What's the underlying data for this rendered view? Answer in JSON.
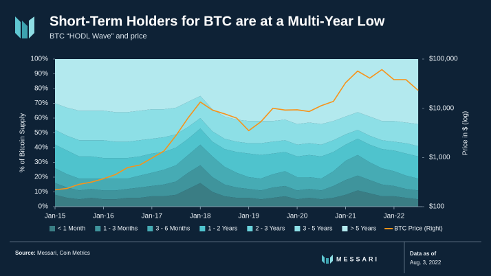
{
  "chart_data": {
    "type": "stacked-area-line",
    "title": "Short-Term Holders for BTC are at a Multi-Year Low",
    "subtitle": "BTC “HODL Wave” and price",
    "y_label": "% of Bitcoin Supply",
    "y2_label": "Price in $ (log)",
    "x": [
      "2015-01",
      "2015-04",
      "2015-07",
      "2015-10",
      "2016-01",
      "2016-04",
      "2016-07",
      "2016-10",
      "2017-01",
      "2017-04",
      "2017-07",
      "2017-10",
      "2018-01",
      "2018-04",
      "2018-07",
      "2018-10",
      "2019-01",
      "2019-04",
      "2019-07",
      "2019-10",
      "2020-01",
      "2020-04",
      "2020-07",
      "2020-10",
      "2021-01",
      "2021-04",
      "2021-07",
      "2021-10",
      "2022-01",
      "2022-04",
      "2022-07"
    ],
    "xlim": [
      "2015-01",
      "2022-08"
    ],
    "xticks": [
      {
        "value": "2015-01",
        "label": "Jan-15"
      },
      {
        "value": "2016-01",
        "label": "Jan-16"
      },
      {
        "value": "2017-01",
        "label": "Jan-17"
      },
      {
        "value": "2018-01",
        "label": "Jan-18"
      },
      {
        "value": "2019-01",
        "label": "Jan-19"
      },
      {
        "value": "2020-01",
        "label": "Jan-20"
      },
      {
        "value": "2021-01",
        "label": "Jan-21"
      },
      {
        "value": "2022-01",
        "label": "Jan-22"
      }
    ],
    "ylim": [
      0,
      100
    ],
    "yticks": [
      {
        "value": 0,
        "label": "0%"
      },
      {
        "value": 10,
        "label": "10%"
      },
      {
        "value": 20,
        "label": "20%"
      },
      {
        "value": 30,
        "label": "30%"
      },
      {
        "value": 40,
        "label": "40%"
      },
      {
        "value": 50,
        "label": "50%"
      },
      {
        "value": 60,
        "label": "60%"
      },
      {
        "value": 70,
        "label": "70%"
      },
      {
        "value": 80,
        "label": "80%"
      },
      {
        "value": 90,
        "label": "90%"
      },
      {
        "value": 100,
        "label": "100%"
      }
    ],
    "y2lim": [
      100,
      100000
    ],
    "y2ticks": [
      {
        "value": 100,
        "label": "$100"
      },
      {
        "value": 1000,
        "label": "$1,000"
      },
      {
        "value": 10000,
        "label": "$10,000"
      },
      {
        "value": 100000,
        "label": "$100,000"
      }
    ],
    "y2_log": true,
    "series": [
      {
        "name": "< 1 Month",
        "color": "#3a7d84",
        "values": [
          8,
          6,
          5,
          6,
          5,
          5,
          6,
          6,
          7,
          7,
          8,
          12,
          16,
          10,
          7,
          6,
          6,
          5,
          6,
          7,
          5,
          6,
          5,
          6,
          8,
          11,
          9,
          7,
          7,
          6,
          5
        ]
      },
      {
        "name": "1 - 3 Months",
        "color": "#3f949c",
        "values": [
          8,
          7,
          6,
          6,
          6,
          6,
          6,
          7,
          7,
          8,
          9,
          11,
          12,
          10,
          8,
          7,
          6,
          6,
          7,
          7,
          6,
          6,
          6,
          8,
          10,
          10,
          9,
          8,
          7,
          6,
          6
        ]
      },
      {
        "name": "3 - 6 Months",
        "color": "#46abb4",
        "values": [
          10,
          9,
          8,
          7,
          8,
          8,
          7,
          8,
          9,
          10,
          11,
          12,
          14,
          14,
          12,
          10,
          8,
          8,
          9,
          10,
          9,
          8,
          8,
          10,
          13,
          14,
          12,
          11,
          10,
          9,
          8
        ]
      },
      {
        "name": "1 - 2 Years",
        "color": "#4fc3cd",
        "values": [
          16,
          16,
          15,
          15,
          14,
          14,
          14,
          13,
          13,
          12,
          12,
          11,
          11,
          10,
          12,
          14,
          16,
          16,
          14,
          13,
          14,
          15,
          15,
          13,
          11,
          11,
          12,
          13,
          14,
          15,
          15
        ]
      },
      {
        "name": "2 - 3 Years",
        "color": "#6ad3dc",
        "values": [
          10,
          10,
          11,
          11,
          12,
          11,
          11,
          11,
          10,
          10,
          9,
          8,
          7,
          7,
          7,
          7,
          7,
          8,
          8,
          8,
          8,
          8,
          8,
          8,
          7,
          6,
          6,
          6,
          6,
          7,
          7
        ]
      },
      {
        "name": "3 - 5 Years",
        "color": "#8ddfe6",
        "values": [
          18,
          19,
          20,
          20,
          20,
          20,
          20,
          20,
          20,
          19,
          18,
          17,
          15,
          15,
          15,
          15,
          15,
          15,
          14,
          14,
          14,
          14,
          14,
          13,
          12,
          12,
          13,
          13,
          14,
          14,
          15
        ]
      },
      {
        "name": "> 5 Years",
        "color": "#b3e9ee",
        "values": [
          30,
          33,
          35,
          35,
          35,
          36,
          36,
          35,
          34,
          34,
          33,
          29,
          25,
          34,
          39,
          41,
          42,
          42,
          42,
          41,
          44,
          43,
          44,
          42,
          39,
          36,
          39,
          42,
          42,
          43,
          44
        ]
      },
      {
        "name": "BTC Price (Right)",
        "color": "#f7931a",
        "axis": "y2",
        "values": [
          220,
          235,
          285,
          315,
          370,
          450,
          625,
          700,
          970,
          1350,
          2800,
          6400,
          13400,
          9200,
          7700,
          6300,
          3500,
          5300,
          10000,
          9200,
          9300,
          8600,
          11300,
          13800,
          33000,
          57000,
          41000,
          61000,
          38000,
          38000,
          23000
        ]
      }
    ],
    "source_label": "Source:",
    "source": "Messari, Coin Metrics",
    "brand": "MESSARI",
    "data_as_of": "Data as of",
    "date": "Aug. 3, 2022"
  }
}
